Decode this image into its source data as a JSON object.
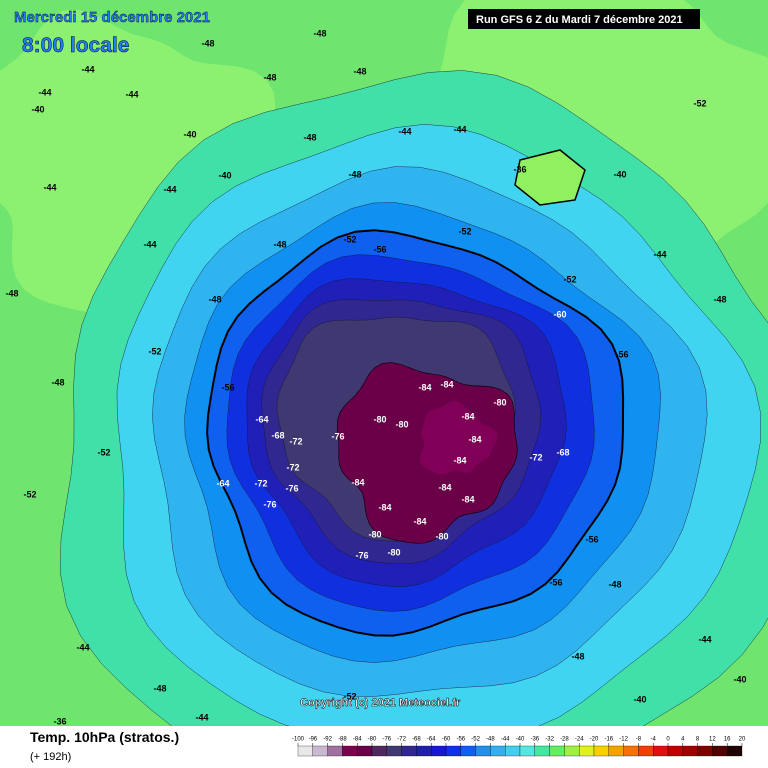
{
  "header": {
    "date": "Mercredi 15 décembre 2021",
    "time": "8:00 locale",
    "run": "Run GFS 6 Z du Mardi 7 décembre 2021"
  },
  "footer": {
    "title": "Temp. 10hPa (stratos.)",
    "lead": "(+ 192h)",
    "copyright": "Copyright (c) 2021 Meteociel.fr"
  },
  "colorbar": {
    "ticks": [
      -100,
      -96,
      -92,
      -88,
      -84,
      -80,
      -76,
      -72,
      -68,
      -64,
      -60,
      -56,
      -52,
      -48,
      -44,
      -40,
      -36,
      -32,
      -28,
      -24,
      -20,
      -16,
      -12,
      -8,
      -4,
      0,
      4,
      8,
      12,
      16,
      20
    ],
    "colors": [
      "#e8e8e8",
      "#c8b8d0",
      "#a070a0",
      "#800050",
      "#6a0048",
      "#502860",
      "#403870",
      "#302890",
      "#2020b0",
      "#1818d0",
      "#1030e8",
      "#1060f0",
      "#2090f0",
      "#30b0f0",
      "#40d0f0",
      "#50e8e0",
      "#40e8a0",
      "#60f060",
      "#a0f040",
      "#e0f020",
      "#f8d000",
      "#f8a000",
      "#f87000",
      "#f04000",
      "#e01010",
      "#c00000",
      "#a00000",
      "#800000",
      "#500000",
      "#200000"
    ]
  },
  "contour_labels": [
    -48,
    -48,
    -44,
    -48,
    -48,
    -44,
    -44,
    -40,
    -48,
    -44,
    -44,
    -40,
    -44,
    -44,
    -48,
    -36,
    -40,
    -44,
    -48,
    -52,
    -56,
    -52,
    -44,
    -48,
    -48,
    -52,
    -60,
    -48,
    -52,
    -56,
    -48,
    -56,
    -84,
    -84,
    -80,
    -80,
    -80,
    -84,
    -64,
    -68,
    -72,
    -76,
    -84,
    -72,
    -68,
    -84,
    -72,
    -84,
    -84,
    -64,
    -72,
    -76,
    -76,
    -84,
    -84,
    -80,
    -84,
    -80,
    -76,
    -80,
    -56,
    -56,
    -52,
    -52,
    -48,
    -48,
    -44,
    -48,
    -52,
    -44,
    -36,
    -40,
    -44,
    -40,
    -40,
    -52
  ]
}
